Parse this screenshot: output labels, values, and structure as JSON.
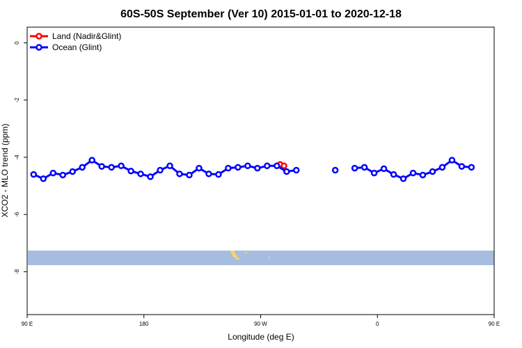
{
  "chart_data": {
    "type": "line",
    "title": "60S-50S September (Ver 10)   2015-01-01 to 2020-12-18",
    "xlabel": "Longitude (deg E)",
    "ylabel": "XCO2 - MLO trend (ppm)",
    "xlim": [
      90,
      450
    ],
    "ylim": [
      -9.5,
      0.55
    ],
    "x_ticks": [
      {
        "value": 90,
        "label": "90 E"
      },
      {
        "value": 180,
        "label": "180"
      },
      {
        "value": 270,
        "label": "90 W"
      },
      {
        "value": 360,
        "label": "0"
      },
      {
        "value": 450,
        "label": "90 E"
      },
      {
        "value": 540,
        "label": "180"
      }
    ],
    "y_ticks": [
      0,
      -2,
      -4,
      -6,
      -8
    ],
    "legend": {
      "position": "top-left",
      "entries": [
        {
          "label": "Land (Nadir&Glint)",
          "color": "#ff0000"
        },
        {
          "label": "Ocean (Glint)",
          "color": "#0000ff"
        }
      ]
    },
    "series": [
      {
        "name": "Land (Nadir&Glint)",
        "color": "#ff0000",
        "points": [
          [
            285,
            -4.25
          ],
          [
            288,
            -4.3
          ]
        ]
      },
      {
        "name": "Ocean (Glint)",
        "color": "#0000ff",
        "points": [
          [
            95,
            -4.6
          ],
          [
            102.5,
            -4.75
          ],
          [
            110,
            -4.55
          ],
          [
            117.5,
            -4.62
          ],
          [
            125,
            -4.5
          ],
          [
            132.5,
            -4.35
          ],
          [
            140,
            -4.1
          ],
          [
            147.5,
            -4.32
          ],
          [
            155,
            -4.35
          ],
          [
            162.5,
            -4.3
          ],
          [
            170,
            -4.48
          ],
          [
            177.5,
            -4.58
          ],
          [
            185,
            -4.68
          ],
          [
            192.5,
            -4.45
          ],
          [
            200,
            -4.3
          ],
          [
            207.5,
            -4.58
          ],
          [
            215,
            -4.62
          ],
          [
            222.5,
            -4.38
          ],
          [
            230,
            -4.58
          ],
          [
            237.5,
            -4.6
          ],
          [
            245,
            -4.38
          ],
          [
            252.5,
            -4.35
          ],
          [
            260,
            -4.3
          ],
          [
            267.5,
            -4.38
          ],
          [
            275,
            -4.3
          ],
          [
            282.5,
            -4.3
          ],
          [
            290,
            -4.5
          ],
          [
            297.5,
            -4.45
          ],
          null,
          [
            327.5,
            -4.45
          ],
          null,
          [
            342.5,
            -4.38
          ],
          [
            350,
            -4.35
          ],
          [
            357.5,
            -4.55
          ],
          [
            365,
            -4.4
          ],
          [
            372.5,
            -4.6
          ],
          [
            380,
            -4.75
          ],
          [
            387.5,
            -4.55
          ],
          [
            395,
            -4.62
          ],
          [
            402.5,
            -4.5
          ],
          [
            410,
            -4.35
          ],
          [
            417.5,
            -4.1
          ],
          [
            425,
            -4.32
          ],
          [
            432.5,
            -4.35
          ]
        ]
      }
    ],
    "map_colors": {
      "ocean": "#a7bde0",
      "land": "#f3d56a"
    }
  }
}
